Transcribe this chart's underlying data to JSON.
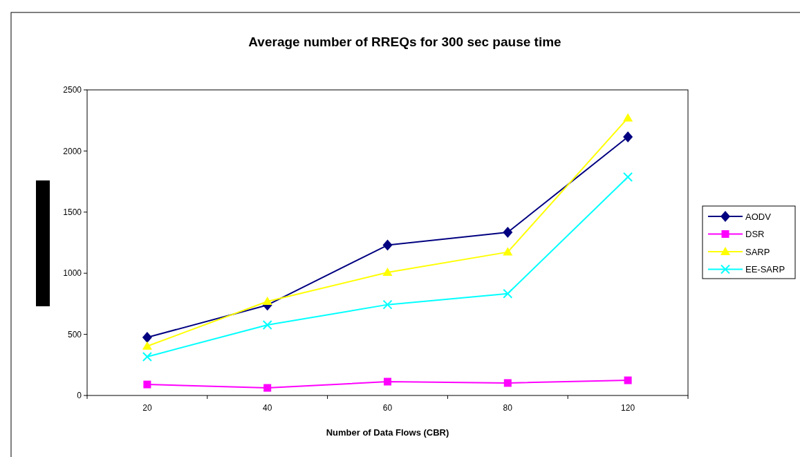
{
  "chart_data": {
    "type": "line",
    "title": "Average number of RREQs for 300 sec pause time",
    "xlabel": "Number of Data Flows (CBR)",
    "categories": [
      "20",
      "40",
      "60",
      "80",
      "120"
    ],
    "series": [
      {
        "name": "AODV",
        "color": "#000080",
        "marker": "diamond",
        "values": [
          475,
          740,
          1230,
          1335,
          2115
        ]
      },
      {
        "name": "DSR",
        "color": "#ff00ff",
        "marker": "square",
        "values": [
          90,
          62,
          113,
          102,
          124
        ]
      },
      {
        "name": "SARP",
        "color": "#ffff00",
        "marker": "triangle",
        "values": [
          403,
          769,
          1007,
          1173,
          2270
        ]
      },
      {
        "name": "EE-SARP",
        "color": "#00ffff",
        "marker": "cross",
        "values": [
          317,
          577,
          743,
          833,
          1787
        ]
      }
    ],
    "ylim": [
      0,
      2500
    ],
    "yticks": [
      0,
      500,
      1000,
      1500,
      2000,
      2500
    ],
    "legend": "right"
  }
}
